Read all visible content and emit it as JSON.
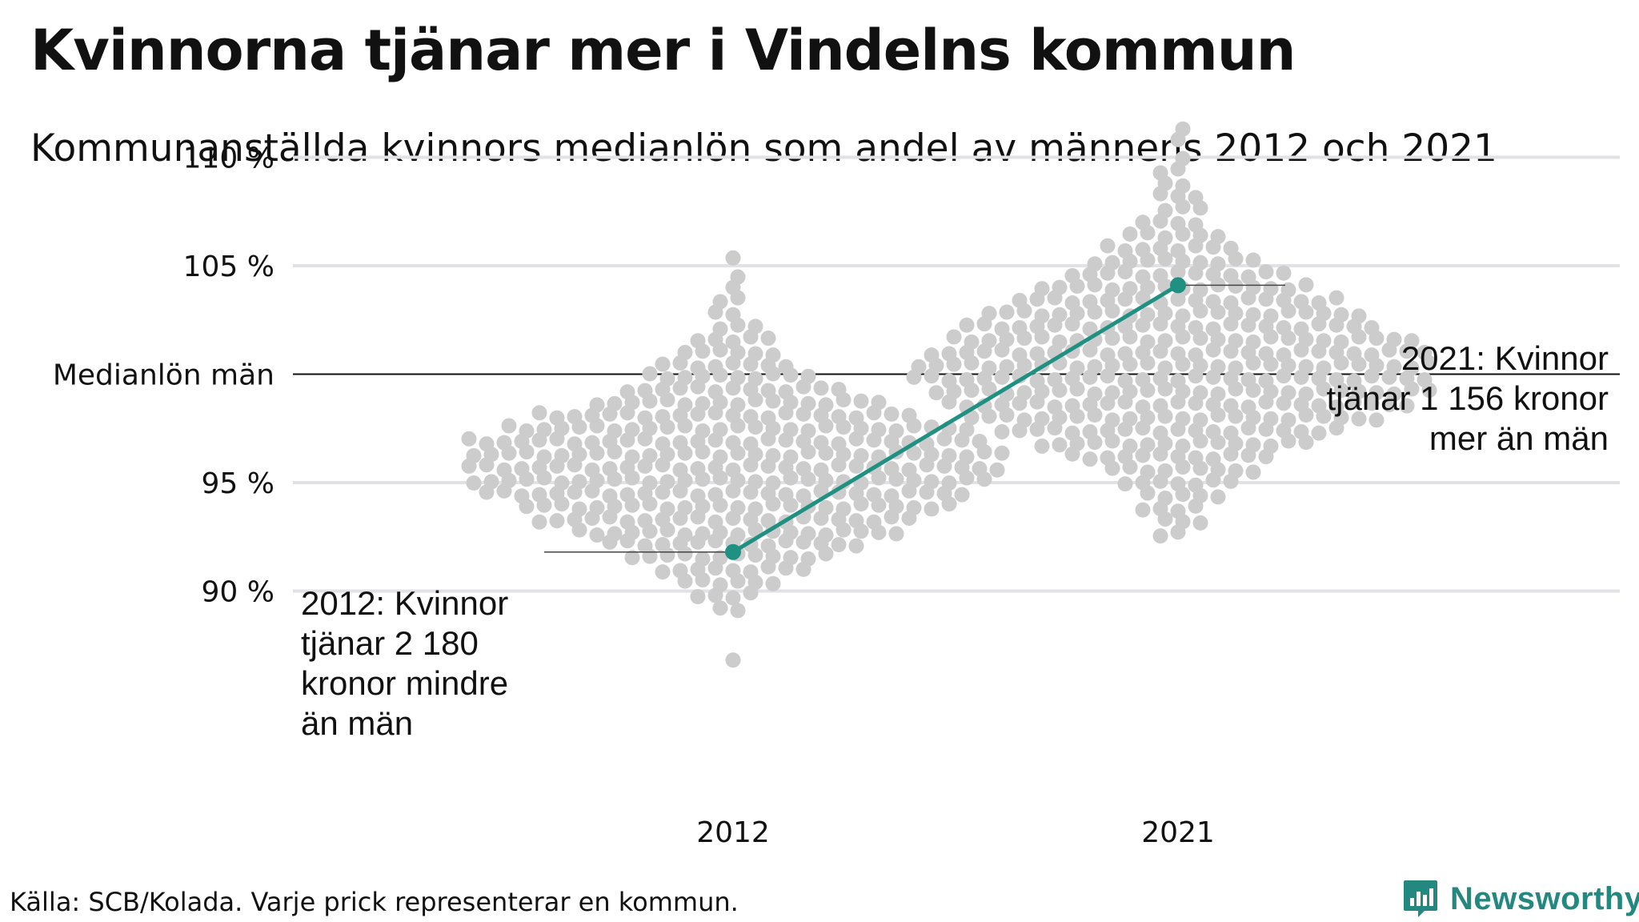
{
  "title": "Kvinnorna tjänar mer i Vindelns kommun",
  "subtitle": "Kommunanställda kvinnors medianlön som andel av männens 2012 och 2021",
  "source": "Källa: SCB/Kolada. Varje prick representerar en kommun.",
  "brand": {
    "name": "Newsworthy",
    "color": "#23887f",
    "icon": "newsworthy-logo-icon"
  },
  "chart_data": {
    "type": "scatter",
    "x": [
      "2012",
      "2021"
    ],
    "ylim": [
      86,
      112
    ],
    "y_ticks": [
      {
        "value": 110,
        "label": "110 %"
      },
      {
        "value": 105,
        "label": "105 %"
      },
      {
        "value": 100,
        "label": "Medianlön män"
      },
      {
        "value": 95,
        "label": "95 %"
      },
      {
        "value": 90,
        "label": "90 %"
      }
    ],
    "grid": true,
    "colors": {
      "dots": "#cccccc",
      "highlight": "#1f9082",
      "grid": "#e2e2e6",
      "baseline": "#111111"
    },
    "distribution": {
      "description": "Varje prick representerar en kommun.",
      "groups": [
        {
          "year": "2012",
          "min": 86.7,
          "max": 105.3,
          "bins": [
            [
              86.7,
              1
            ],
            [
              89.1,
              2
            ],
            [
              89.8,
              4
            ],
            [
              90.4,
              6
            ],
            [
              91.0,
              9
            ],
            [
              91.6,
              12
            ],
            [
              92.2,
              15
            ],
            [
              92.7,
              19
            ],
            [
              93.3,
              22
            ],
            [
              93.9,
              25
            ],
            [
              94.5,
              28
            ],
            [
              95.1,
              30
            ],
            [
              95.7,
              31
            ],
            [
              96.3,
              31
            ],
            [
              96.9,
              30
            ],
            [
              97.5,
              27
            ],
            [
              98.1,
              22
            ],
            [
              98.7,
              17
            ],
            [
              99.3,
              13
            ],
            [
              99.9,
              10
            ],
            [
              100.4,
              8
            ],
            [
              101.0,
              6
            ],
            [
              101.6,
              5
            ],
            [
              102.2,
              3
            ],
            [
              102.8,
              2
            ],
            [
              103.4,
              2
            ],
            [
              104.0,
              1
            ],
            [
              104.6,
              1
            ],
            [
              105.3,
              1
            ]
          ]
        },
        {
          "year": "2021",
          "min": 92.6,
          "max": 111.3,
          "bins": [
            [
              92.6,
              2
            ],
            [
              93.2,
              3
            ],
            [
              93.8,
              4
            ],
            [
              94.4,
              5
            ],
            [
              95.0,
              7
            ],
            [
              95.6,
              9
            ],
            [
              96.2,
              12
            ],
            [
              96.8,
              16
            ],
            [
              97.4,
              20
            ],
            [
              98.0,
              24
            ],
            [
              98.6,
              27
            ],
            [
              99.2,
              29
            ],
            [
              99.8,
              30
            ],
            [
              100.4,
              30
            ],
            [
              101.0,
              29
            ],
            [
              101.6,
              27
            ],
            [
              102.2,
              24
            ],
            [
              102.8,
              22
            ],
            [
              103.4,
              19
            ],
            [
              104.0,
              16
            ],
            [
              104.6,
              13
            ],
            [
              105.2,
              10
            ],
            [
              105.8,
              8
            ],
            [
              106.4,
              6
            ],
            [
              107.0,
              4
            ],
            [
              107.6,
              3
            ],
            [
              108.2,
              3
            ],
            [
              108.8,
              2
            ],
            [
              109.4,
              2
            ],
            [
              110.0,
              1
            ],
            [
              110.7,
              1
            ],
            [
              111.3,
              1
            ]
          ]
        }
      ]
    },
    "series": [
      {
        "x": [
          "2012",
          "2021"
        ],
        "values": [
          91.8,
          104.1
        ]
      }
    ],
    "annotations": [
      {
        "x": "2012",
        "y": 91.8,
        "lines": [
          "2012: Kvinnor",
          "tjänar 2 180",
          "kronor mindre",
          "än män"
        ],
        "side": "left"
      },
      {
        "x": "2021",
        "y": 104.1,
        "lines": [
          "2021: Kvinnor",
          "tjänar 1 156 kronor",
          "mer än män"
        ],
        "side": "right"
      }
    ]
  }
}
